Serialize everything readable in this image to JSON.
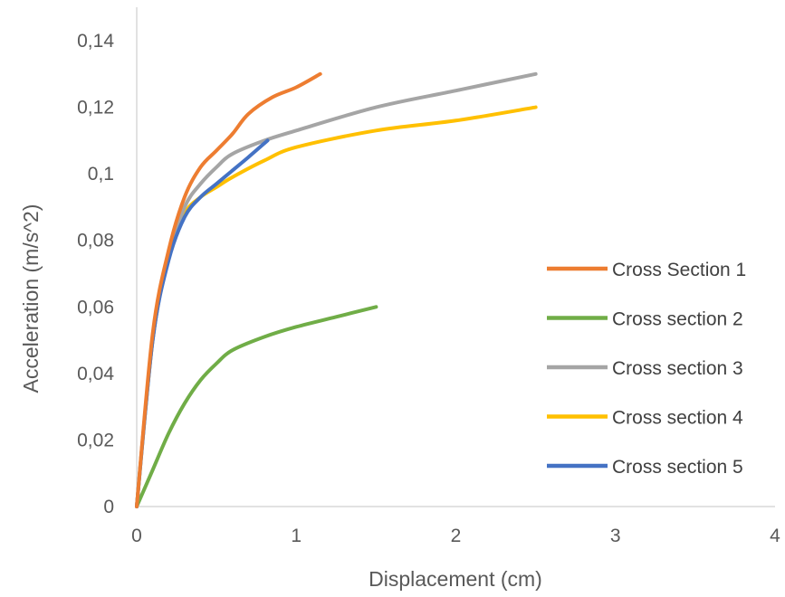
{
  "chart_data": {
    "type": "line",
    "title": "",
    "xlabel": "Displacement (cm)",
    "ylabel": "Acceleration (m/s^2)",
    "xlim": [
      0,
      4
    ],
    "ylim": [
      0,
      0.14
    ],
    "xticks": [
      {
        "value": 0,
        "label": "0"
      },
      {
        "value": 1,
        "label": "1"
      },
      {
        "value": 2,
        "label": "2"
      },
      {
        "value": 3,
        "label": "3"
      },
      {
        "value": 4,
        "label": "4"
      }
    ],
    "yticks": [
      {
        "value": 0,
        "label": "0"
      },
      {
        "value": 0.02,
        "label": "0,02"
      },
      {
        "value": 0.04,
        "label": "0,04"
      },
      {
        "value": 0.06,
        "label": "0,06"
      },
      {
        "value": 0.08,
        "label": "0,08"
      },
      {
        "value": 0.1,
        "label": "0,1"
      },
      {
        "value": 0.12,
        "label": "0,12"
      },
      {
        "value": 0.14,
        "label": "0,14"
      }
    ],
    "grid": false,
    "legend_position": "right",
    "series": [
      {
        "name": "Cross Section 1",
        "color": "#ED7D31",
        "x": [
          0,
          0.1,
          0.2,
          0.3,
          0.4,
          0.5,
          0.6,
          0.7,
          0.85,
          1.0,
          1.15
        ],
        "y": [
          0,
          0.052,
          0.077,
          0.093,
          0.102,
          0.107,
          0.112,
          0.118,
          0.123,
          0.126,
          0.13
        ]
      },
      {
        "name": "Cross section 2",
        "color": "#70AD47",
        "x": [
          0,
          0.1,
          0.2,
          0.3,
          0.4,
          0.5,
          0.6,
          0.8,
          1.0,
          1.25,
          1.5
        ],
        "y": [
          0,
          0.011,
          0.022,
          0.031,
          0.038,
          0.043,
          0.047,
          0.051,
          0.054,
          0.057,
          0.06
        ]
      },
      {
        "name": "Cross section 3",
        "color": "#A5A5A5",
        "x": [
          0,
          0.1,
          0.2,
          0.3,
          0.4,
          0.5,
          0.6,
          0.8,
          1.0,
          1.5,
          2.0,
          2.5
        ],
        "y": [
          0,
          0.05,
          0.075,
          0.09,
          0.097,
          0.102,
          0.106,
          0.11,
          0.113,
          0.12,
          0.125,
          0.13
        ]
      },
      {
        "name": "Cross section 4",
        "color": "#FFC000",
        "x": [
          0,
          0.1,
          0.2,
          0.3,
          0.4,
          0.5,
          0.6,
          0.8,
          1.0,
          1.5,
          2.0,
          2.5
        ],
        "y": [
          0,
          0.05,
          0.075,
          0.088,
          0.093,
          0.096,
          0.099,
          0.104,
          0.108,
          0.113,
          0.116,
          0.12
        ]
      },
      {
        "name": "Cross section 5",
        "color": "#4472C4",
        "x": [
          0,
          0.1,
          0.2,
          0.3,
          0.4,
          0.5,
          0.6,
          0.7,
          0.82
        ],
        "y": [
          0,
          0.05,
          0.074,
          0.087,
          0.093,
          0.097,
          0.101,
          0.105,
          0.11
        ]
      }
    ]
  }
}
